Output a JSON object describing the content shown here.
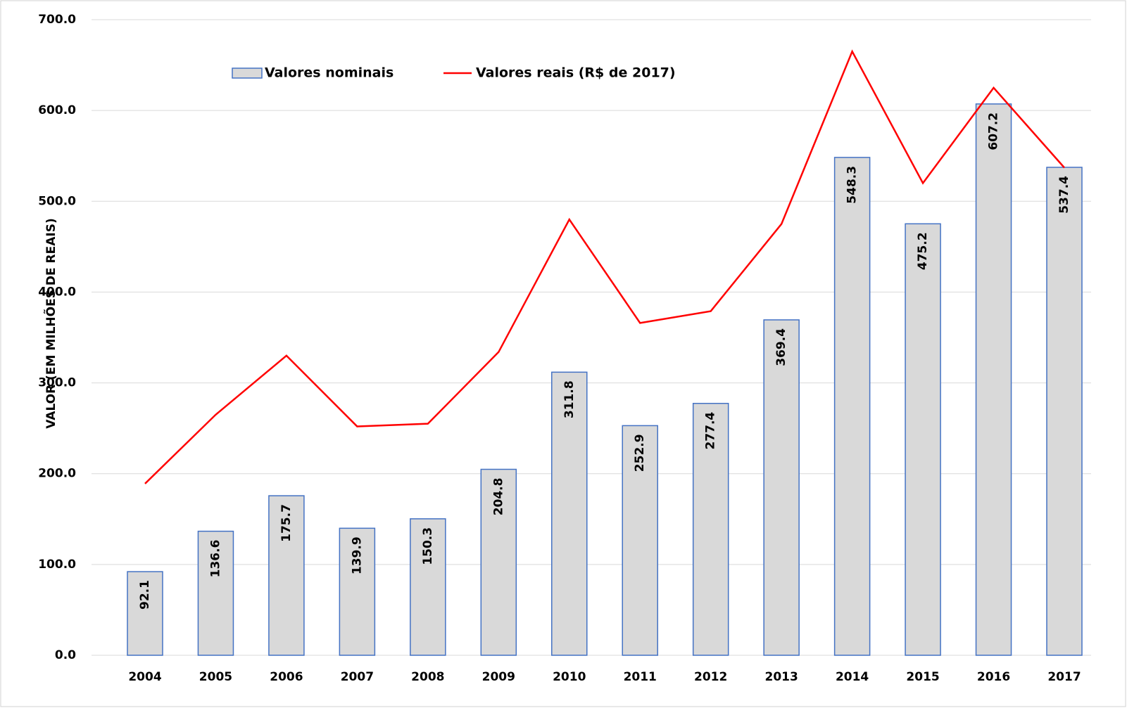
{
  "chart_data": {
    "type": "bar_line",
    "y_axis_label": "VALOR (EM MILHÕES DE REAIS)",
    "categories": [
      "2004",
      "2005",
      "2006",
      "2007",
      "2008",
      "2009",
      "2010",
      "2011",
      "2012",
      "2013",
      "2014",
      "2015",
      "2016",
      "2017"
    ],
    "series": [
      {
        "name": "Valores nominais",
        "type": "bar",
        "color": "#d9d9d9",
        "edge_color": "#4472c4",
        "values": [
          92.1,
          136.6,
          175.7,
          139.9,
          150.3,
          204.8,
          311.8,
          252.9,
          277.4,
          369.4,
          548.3,
          475.2,
          607.2,
          537.4
        ]
      },
      {
        "name": "Valores reais (R$ de 2017)",
        "type": "line",
        "color": "#ff0000",
        "values": [
          189,
          265,
          330,
          252,
          255,
          334,
          480,
          366,
          379,
          475,
          665,
          520,
          625,
          537
        ]
      }
    ],
    "ylim": [
      0,
      700
    ],
    "yticks": [
      {
        "value": 0,
        "label": "0.0"
      },
      {
        "value": 100,
        "label": "100.0"
      },
      {
        "value": 200,
        "label": "200.0"
      },
      {
        "value": 300,
        "label": "300.0"
      },
      {
        "value": 400,
        "label": "400.0"
      },
      {
        "value": 500,
        "label": "500.0"
      },
      {
        "value": 600,
        "label": "600.0"
      },
      {
        "value": 700,
        "label": "700.0"
      }
    ],
    "grid": true
  }
}
